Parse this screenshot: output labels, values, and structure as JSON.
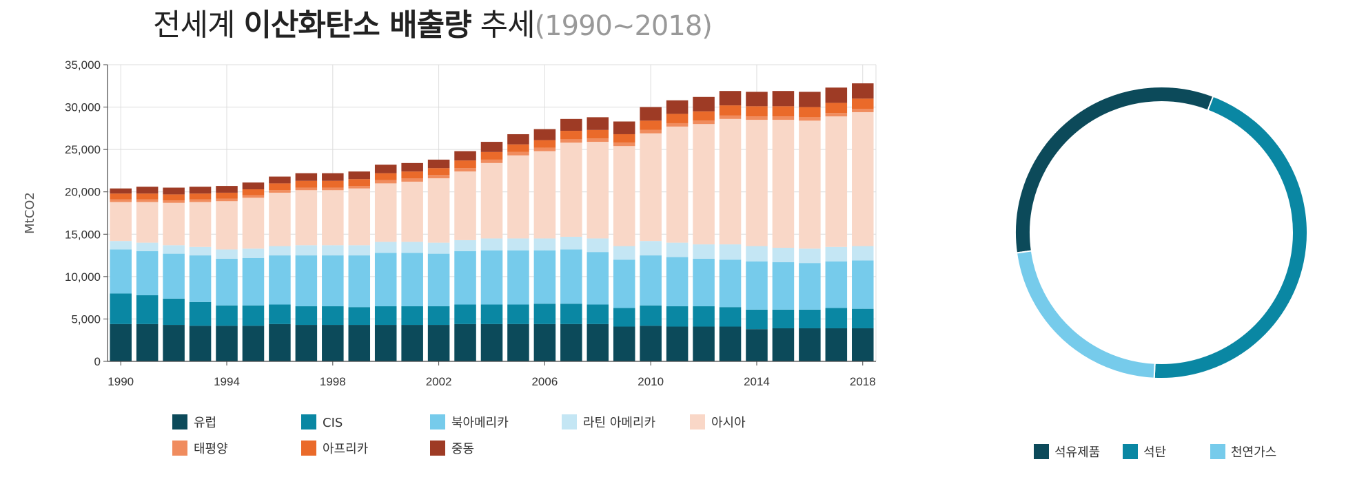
{
  "title": {
    "normal_a": "전세계 ",
    "bold": "이산화탄소 배출량",
    "normal_b": " 추세",
    "period": "(1990~2018)"
  },
  "chart_data": [
    {
      "type": "bar",
      "stacked": true,
      "ylabel": "MtCO2",
      "ylim": [
        0,
        35000
      ],
      "yticks": [
        "0",
        "5,000",
        "10,000",
        "15,000",
        "20,000",
        "25,000",
        "30,000",
        "35,000"
      ],
      "xtick_labels": [
        "1990",
        "1994",
        "1998",
        "2002",
        "2006",
        "2010",
        "2014",
        "2018"
      ],
      "categories": [
        "1990",
        "1991",
        "1992",
        "1993",
        "1994",
        "1995",
        "1996",
        "1997",
        "1998",
        "1999",
        "2000",
        "2001",
        "2002",
        "2003",
        "2004",
        "2005",
        "2006",
        "2007",
        "2008",
        "2009",
        "2010",
        "2011",
        "2012",
        "2013",
        "2014",
        "2015",
        "2016",
        "2017",
        "2018"
      ],
      "grid": true,
      "legend_position": "bottom",
      "series": [
        {
          "name": "유럽",
          "color": "#0c4a5a",
          "values": [
            4400,
            4400,
            4300,
            4200,
            4200,
            4200,
            4400,
            4300,
            4300,
            4300,
            4300,
            4300,
            4300,
            4400,
            4400,
            4400,
            4400,
            4400,
            4400,
            4100,
            4200,
            4100,
            4100,
            4100,
            3800,
            3900,
            3900,
            3900,
            3900
          ]
        },
        {
          "name": "CIS",
          "color": "#0a87a3",
          "values": [
            3600,
            3400,
            3100,
            2800,
            2400,
            2400,
            2300,
            2200,
            2200,
            2100,
            2200,
            2200,
            2200,
            2300,
            2300,
            2300,
            2400,
            2400,
            2300,
            2200,
            2400,
            2400,
            2400,
            2300,
            2300,
            2200,
            2200,
            2400,
            2300
          ]
        },
        {
          "name": "북아메리카",
          "color": "#76cbeb",
          "values": [
            5200,
            5200,
            5300,
            5500,
            5500,
            5600,
            5800,
            6000,
            6000,
            6100,
            6300,
            6300,
            6200,
            6300,
            6400,
            6400,
            6300,
            6400,
            6200,
            5700,
            5900,
            5800,
            5600,
            5600,
            5700,
            5600,
            5500,
            5500,
            5700
          ]
        },
        {
          "name": "라틴 아메리카",
          "color": "#c4e6f4",
          "values": [
            1000,
            1000,
            1000,
            1000,
            1100,
            1100,
            1100,
            1200,
            1200,
            1200,
            1300,
            1300,
            1300,
            1300,
            1400,
            1400,
            1400,
            1500,
            1600,
            1600,
            1700,
            1700,
            1700,
            1800,
            1800,
            1700,
            1700,
            1700,
            1700
          ]
        },
        {
          "name": "아시아",
          "color": "#f9d7c7",
          "values": [
            4600,
            4800,
            5000,
            5300,
            5700,
            6000,
            6300,
            6500,
            6500,
            6700,
            6900,
            7100,
            7600,
            8100,
            8900,
            9800,
            10300,
            11100,
            11400,
            11800,
            12700,
            13700,
            14200,
            14800,
            14900,
            15100,
            15100,
            15400,
            15800
          ]
        },
        {
          "name": "태평양",
          "color": "#f08c5e",
          "values": [
            300,
            300,
            300,
            300,
            300,
            300,
            300,
            300,
            300,
            300,
            400,
            400,
            400,
            400,
            400,
            400,
            400,
            400,
            400,
            400,
            400,
            400,
            400,
            400,
            400,
            400,
            400,
            400,
            400
          ]
        },
        {
          "name": "아프리카",
          "color": "#ea6a2a",
          "values": [
            700,
            700,
            700,
            700,
            700,
            700,
            800,
            800,
            800,
            800,
            800,
            800,
            800,
            900,
            900,
            900,
            900,
            1000,
            1000,
            1000,
            1100,
            1100,
            1100,
            1200,
            1200,
            1200,
            1200,
            1200,
            1200
          ]
        },
        {
          "name": "중동",
          "color": "#9e3b25",
          "values": [
            600,
            800,
            800,
            800,
            800,
            800,
            800,
            900,
            900,
            900,
            1000,
            1000,
            1000,
            1100,
            1200,
            1200,
            1300,
            1400,
            1500,
            1500,
            1600,
            1600,
            1700,
            1700,
            1700,
            1800,
            1800,
            1800,
            1800
          ]
        }
      ]
    },
    {
      "type": "pie",
      "donut": true,
      "categories": [
        "석유제품",
        "석탄",
        "천연가스"
      ],
      "values": [
        33,
        45,
        22
      ],
      "colors": [
        "#0c4a5a",
        "#0a87a3",
        "#76cbeb"
      ],
      "start_angle_deg": -98,
      "legend_position": "bottom"
    }
  ]
}
